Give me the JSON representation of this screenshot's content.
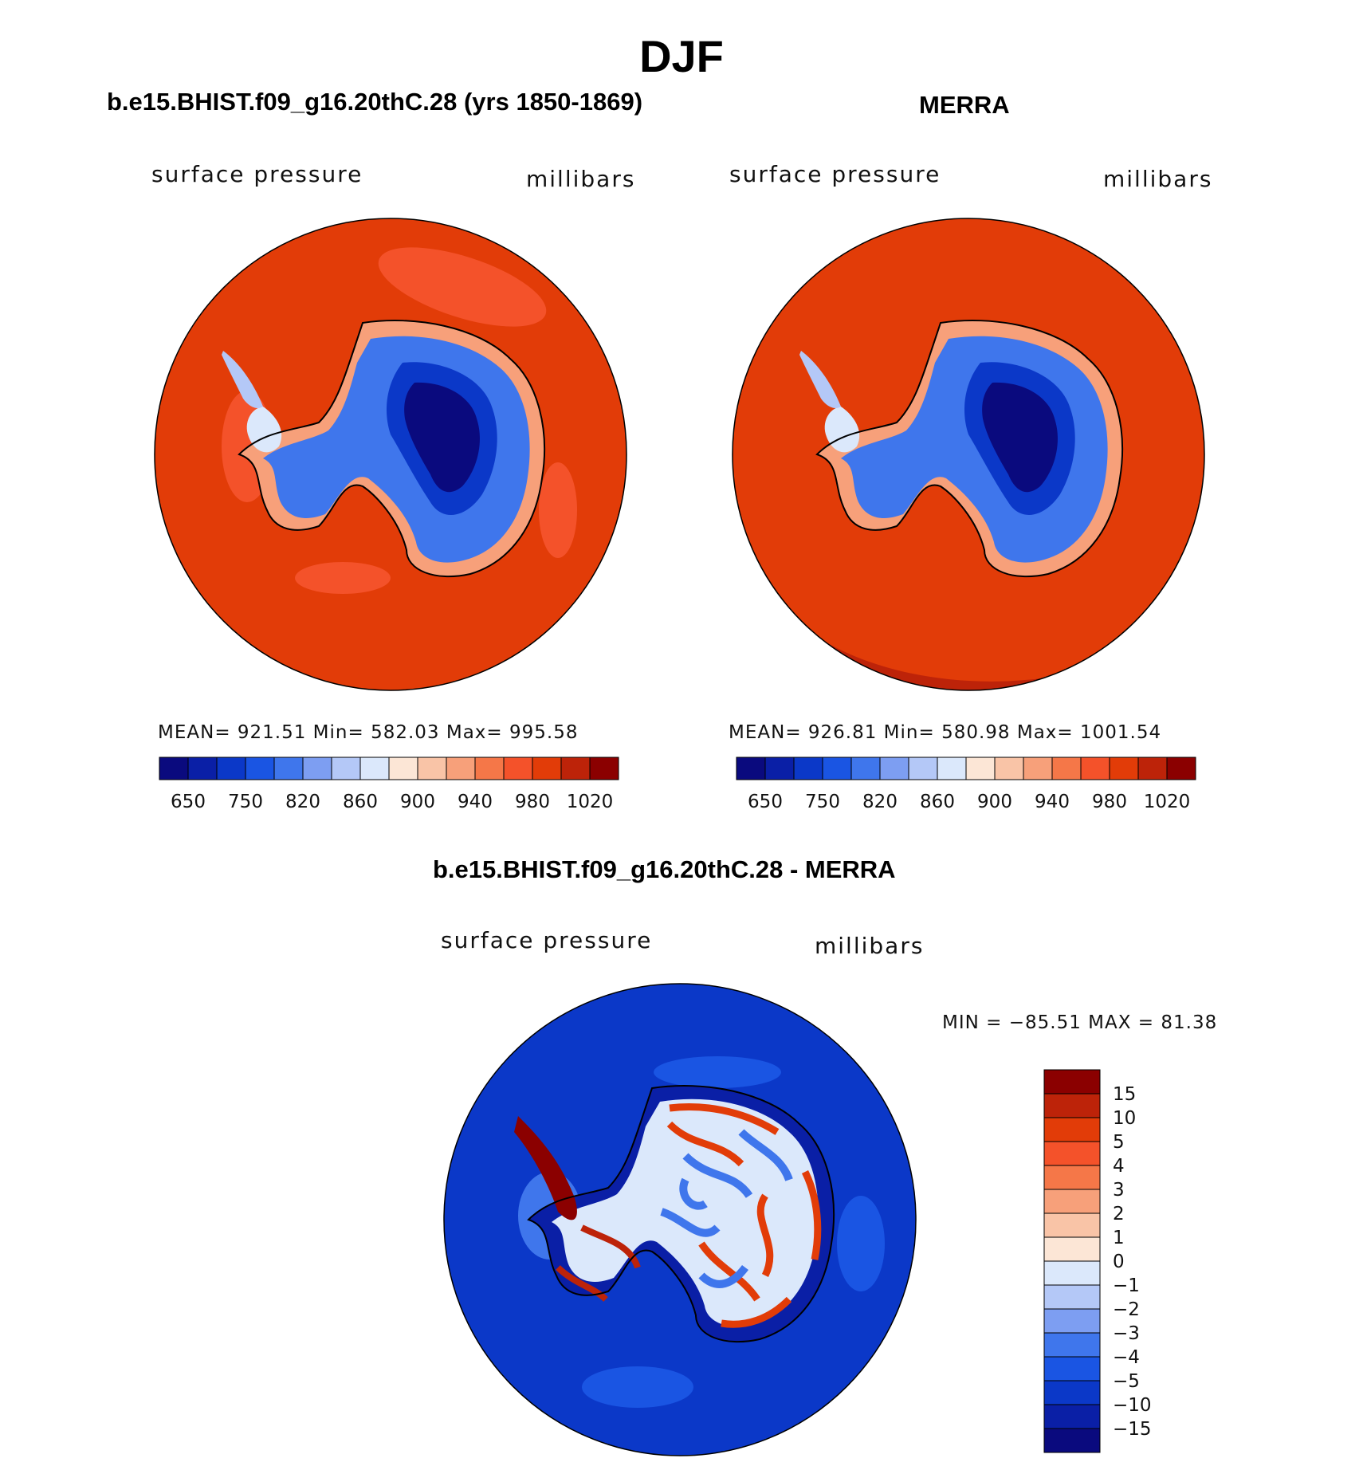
{
  "title": "DJF",
  "panels": [
    {
      "id": "model",
      "title": "b.e15.BHIST.f09_g16.20thC.28 (yrs 1850-1869)",
      "variable": "surface pressure",
      "units": "millibars",
      "stats": "MEAN= 921.51   Min= 582.03   Max= 995.58"
    },
    {
      "id": "obs",
      "title": "MERRA",
      "variable": "surface pressure",
      "units": "millibars",
      "stats": "MEAN= 926.81   Min= 580.98   Max= 1001.54"
    },
    {
      "id": "diff",
      "title": "b.e15.BHIST.f09_g16.20thC.28 - MERRA",
      "variable": "surface pressure",
      "units": "millibars",
      "stats": "MIN = −85.51  MAX =   81.38"
    }
  ],
  "colorbar_abs": {
    "labels": [
      "650",
      "750",
      "820",
      "860",
      "900",
      "940",
      "980",
      "1020"
    ],
    "colors": [
      "#0a0a7e",
      "#0a1fa6",
      "#0b38c8",
      "#1a55e3",
      "#3f76ec",
      "#7d9ef2",
      "#b4c8f7",
      "#dbe8fb",
      "#fce6d6",
      "#f9c4a7",
      "#f7a07a",
      "#f57748",
      "#f4522a",
      "#e23c08",
      "#bd2309",
      "#8b0000"
    ]
  },
  "colorbar_diff": {
    "labels": [
      "15",
      "10",
      "5",
      "4",
      "3",
      "2",
      "1",
      "0",
      "−1",
      "−2",
      "−3",
      "−4",
      "−5",
      "−10",
      "−15"
    ],
    "colors": [
      "#8b0000",
      "#bd2309",
      "#e23c08",
      "#f4522a",
      "#f57748",
      "#f7a07a",
      "#f9c4a7",
      "#fce6d6",
      "#dbe8fb",
      "#b4c8f7",
      "#7d9ef2",
      "#3f76ec",
      "#1a55e3",
      "#0b38c8",
      "#0a1fa6",
      "#0a0a7e"
    ]
  },
  "colors": {
    "ocean_abs": "#e23c08",
    "ocean_diff": "#0b38c8"
  }
}
